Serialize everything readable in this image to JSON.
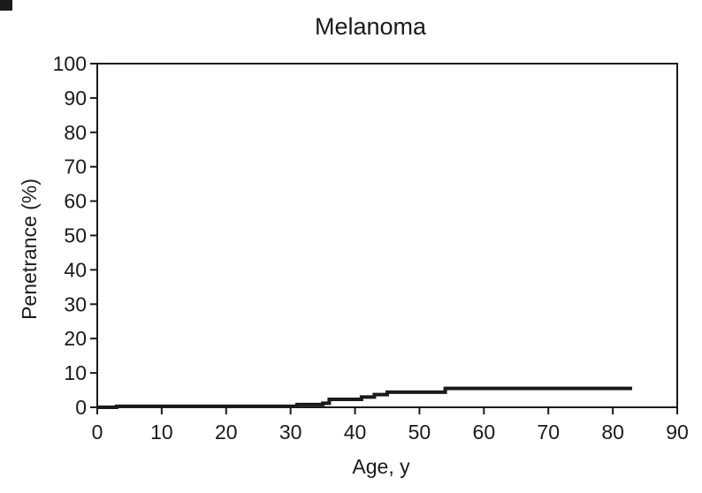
{
  "chart_data": {
    "type": "line",
    "title": "Melanoma",
    "xlabel": "Age, y",
    "ylabel": "Penetrance (%)",
    "xlim": [
      0,
      90
    ],
    "ylim": [
      0,
      100
    ],
    "x_ticks": [
      0,
      10,
      20,
      30,
      40,
      50,
      60,
      70,
      80,
      90
    ],
    "y_ticks": [
      0,
      10,
      20,
      30,
      40,
      50,
      60,
      70,
      80,
      90,
      100
    ],
    "grid": false,
    "legend": "none",
    "line_style": "step",
    "series": [
      {
        "x": [
          0,
          3,
          31,
          35,
          36,
          41,
          43,
          45,
          54,
          83
        ],
        "y": [
          0,
          0.3,
          0.8,
          1.2,
          2.3,
          3.0,
          3.7,
          4.4,
          5.5,
          5.5
        ]
      }
    ]
  },
  "colors": {
    "line": "#1a1a1a",
    "background": "#ffffff"
  }
}
